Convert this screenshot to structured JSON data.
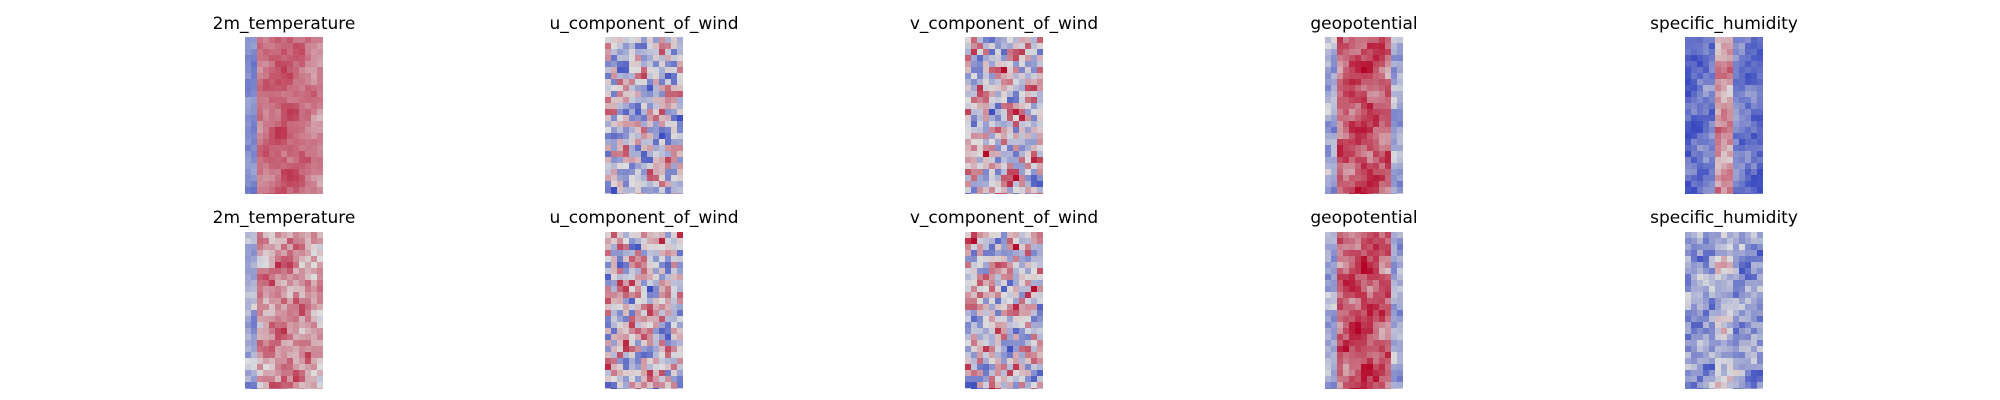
{
  "chart_data": {
    "type": "heatmap",
    "layout": {
      "rows": 2,
      "columns": 5
    },
    "axes": "off",
    "colormap": "coolwarm",
    "colors": {
      "cold": "#3b4cc0",
      "neutral": "#dddddd",
      "warm": "#b40426"
    },
    "panels": [
      {
        "title": "2m_temperature",
        "row": 0,
        "col": 0,
        "pattern": "warm-band",
        "seed": 11
      },
      {
        "title": "u_component_of_wind",
        "row": 0,
        "col": 1,
        "pattern": "noisy-cool",
        "seed": 23
      },
      {
        "title": "v_component_of_wind",
        "row": 0,
        "col": 2,
        "pattern": "noisy-neutral",
        "seed": 37
      },
      {
        "title": "geopotential",
        "row": 0,
        "col": 3,
        "pattern": "warm-band-strong",
        "seed": 41
      },
      {
        "title": "specific_humidity",
        "row": 0,
        "col": 4,
        "pattern": "cold-edges-warm-center",
        "seed": 53
      },
      {
        "title": "2m_temperature",
        "row": 1,
        "col": 0,
        "pattern": "warm-band-noisy",
        "seed": 67
      },
      {
        "title": "u_component_of_wind",
        "row": 1,
        "col": 1,
        "pattern": "noisy-neutral",
        "seed": 71
      },
      {
        "title": "v_component_of_wind",
        "row": 1,
        "col": 2,
        "pattern": "noisy-neutral",
        "seed": 83
      },
      {
        "title": "geopotential",
        "row": 1,
        "col": 3,
        "pattern": "warm-band-strong",
        "seed": 97
      },
      {
        "title": "specific_humidity",
        "row": 1,
        "col": 4,
        "pattern": "cool-noisy",
        "seed": 101
      }
    ]
  }
}
